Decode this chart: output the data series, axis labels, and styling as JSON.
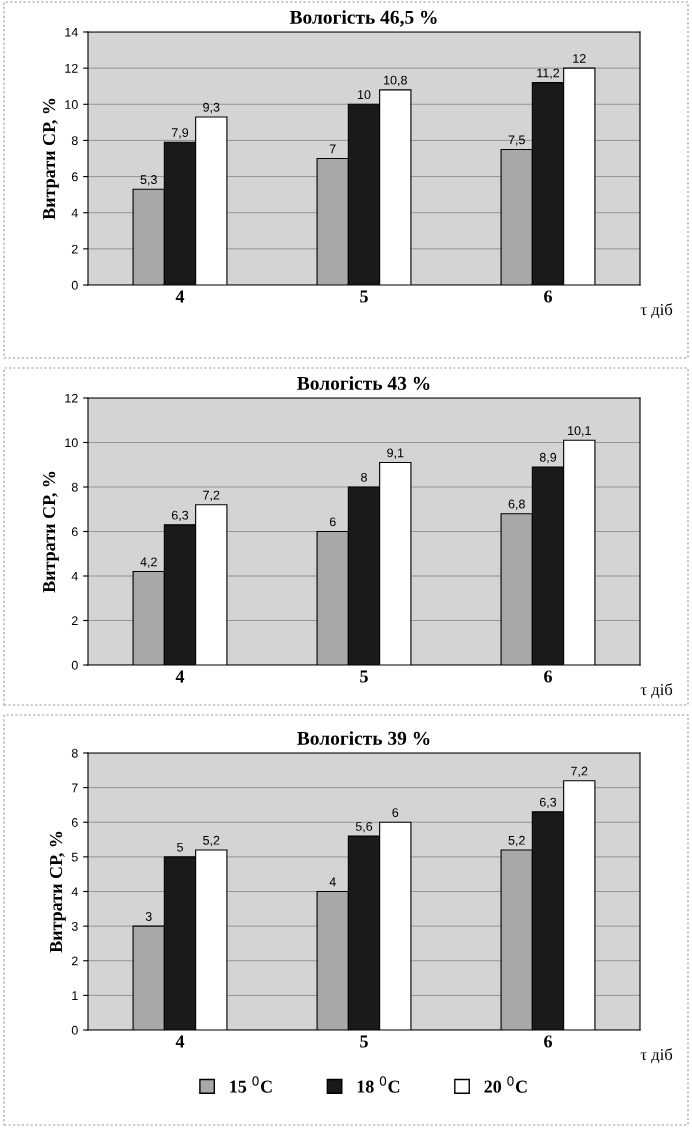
{
  "chart_data": [
    {
      "type": "bar",
      "title": "Вологість 46,5 %",
      "ylabel": "Витрати СР, %",
      "xlabel": "τ діб",
      "categories": [
        "4",
        "5",
        "6"
      ],
      "ylim": [
        0,
        14
      ],
      "yticks": [
        0,
        2,
        4,
        6,
        8,
        10,
        12,
        14
      ],
      "grid": "y",
      "legend": false,
      "series": [
        {
          "color": "#a8a8a8",
          "values": [
            5.3,
            7,
            7.5
          ],
          "value_labels": [
            "5,3",
            "7",
            "7,5"
          ]
        },
        {
          "color": "#1a1a1a",
          "values": [
            7.9,
            10,
            11.2
          ],
          "value_labels": [
            "7,9",
            "10",
            "11,2"
          ]
        },
        {
          "color": "#ffffff",
          "values": [
            9.3,
            10.8,
            12
          ],
          "value_labels": [
            "9,3",
            "10,8",
            "12"
          ]
        }
      ]
    },
    {
      "type": "bar",
      "title": "Вологість 43 %",
      "ylabel": "Витрати СР, %",
      "xlabel": "τ діб",
      "categories": [
        "4",
        "5",
        "6"
      ],
      "ylim": [
        0,
        12
      ],
      "yticks": [
        0,
        2,
        4,
        6,
        8,
        10,
        12
      ],
      "grid": "y",
      "legend": false,
      "series": [
        {
          "color": "#a8a8a8",
          "values": [
            4.2,
            6,
            6.8
          ],
          "value_labels": [
            "4,2",
            "6",
            "6,8"
          ]
        },
        {
          "color": "#1a1a1a",
          "values": [
            6.3,
            8,
            8.9
          ],
          "value_labels": [
            "6,3",
            "8",
            "8,9"
          ]
        },
        {
          "color": "#ffffff",
          "values": [
            7.2,
            9.1,
            10.1
          ],
          "value_labels": [
            "7,2",
            "9,1",
            "10,1"
          ]
        }
      ]
    },
    {
      "type": "bar",
      "title": "Вологість 39 %",
      "ylabel": "Витрати СР, %",
      "xlabel": "τ діб",
      "categories": [
        "4",
        "5",
        "6"
      ],
      "ylim": [
        0,
        8
      ],
      "yticks": [
        0,
        1,
        2,
        3,
        4,
        5,
        6,
        7,
        8
      ],
      "grid": "y",
      "legend": "bottom",
      "series": [
        {
          "name": "15 $^{0}$C",
          "color": "#a8a8a8",
          "values": [
            3,
            4,
            5.2
          ],
          "value_labels": [
            "3",
            "4",
            "5,2"
          ]
        },
        {
          "name": "18 $^{0}$C",
          "color": "#1a1a1a",
          "values": [
            5,
            5.6,
            6.3
          ],
          "value_labels": [
            "5",
            "5,6",
            "6,3"
          ]
        },
        {
          "name": "20 $^{0}$C",
          "color": "#ffffff",
          "values": [
            5.2,
            6,
            7.2
          ],
          "value_labels": [
            "5,2",
            "6",
            "7,2"
          ]
        }
      ]
    }
  ]
}
